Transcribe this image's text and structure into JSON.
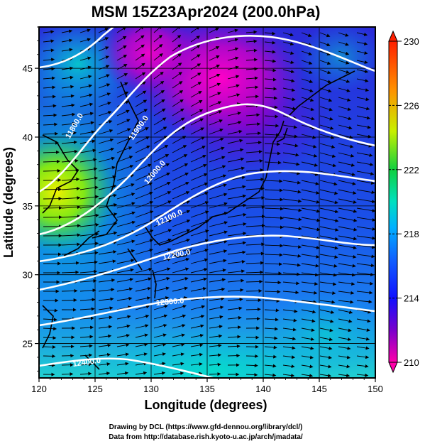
{
  "title": "MSM 15Z23Apr2024 (200.0hPa)",
  "xlabel": "Longitude (degrees)",
  "ylabel": "Latitude  (degrees)",
  "x_ticks": [
    "120",
    "125",
    "130",
    "135",
    "140",
    "145",
    "150"
  ],
  "y_ticks": [
    "25",
    "30",
    "35",
    "40",
    "45"
  ],
  "colorbar_ticks": [
    "210",
    "214",
    "218",
    "222",
    "226",
    "230"
  ],
  "contour_labels": [
    "11900.0",
    "11800.0",
    "12000.0",
    "12100.0",
    "12200.0",
    "12300.0",
    "12400.0"
  ],
  "credits": [
    "Drawing by DCL (https://www.gfd-dennou.org/library/dcl/)",
    "Data from http://database.rish.kyoto-u.ac.jp/arch/jmadata/"
  ],
  "map_data": {
    "lon_range": [
      120,
      150
    ],
    "lat_range": [
      22.5,
      48
    ],
    "colorbar_range": [
      210,
      230
    ],
    "colormap": [
      "#ff00aa",
      "#7a00cc",
      "#1a1aff",
      "#00a0ff",
      "#00e0c0",
      "#10d040",
      "#c8f000",
      "#ff8000",
      "#ff2000"
    ],
    "contour_color": "#ffffff",
    "vector_color": "#000000"
  }
}
